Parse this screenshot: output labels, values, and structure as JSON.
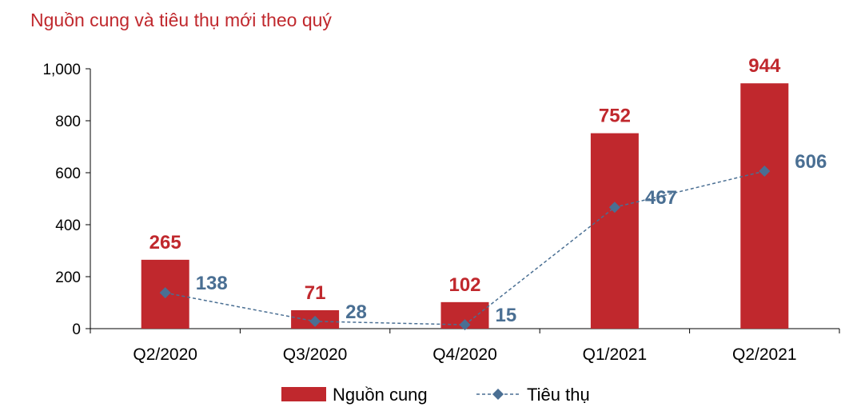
{
  "chart_data": {
    "type": "bar",
    "title": "Nguồn cung và tiêu thụ mới theo quý",
    "categories": [
      "Q2/2020",
      "Q3/2020",
      "Q4/2020",
      "Q1/2021",
      "Q2/2021"
    ],
    "series": [
      {
        "name": "Nguồn cung",
        "type": "bar",
        "values": [
          265,
          71,
          102,
          752,
          944
        ],
        "color": "#c0282d"
      },
      {
        "name": "Tiêu thụ",
        "type": "line",
        "values": [
          138,
          28,
          15,
          467,
          606
        ],
        "color": "#4a6f93"
      }
    ],
    "ylim": [
      0,
      1000
    ],
    "yticks": [
      0,
      200,
      400,
      600,
      800,
      1000
    ],
    "ytick_labels": [
      "0",
      "200",
      "400",
      "600",
      "800",
      "1,000"
    ],
    "legend": "bottom",
    "grid": false
  }
}
